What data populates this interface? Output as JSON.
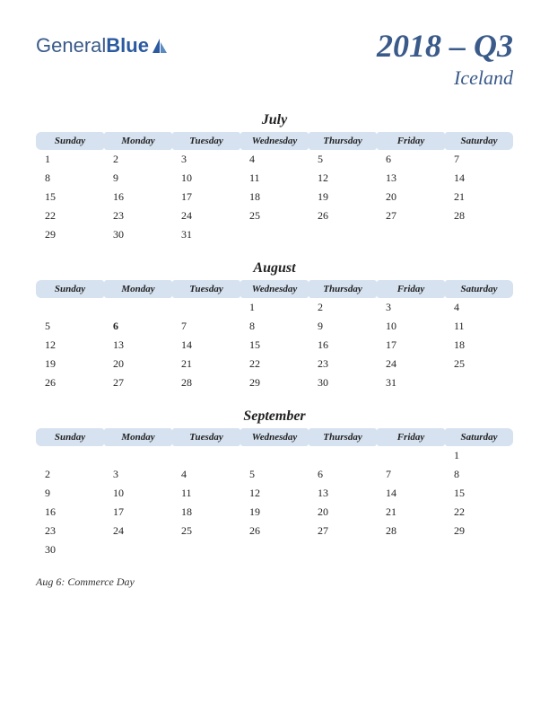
{
  "logo": {
    "text1": "General",
    "text2": "Blue"
  },
  "title": {
    "main": "2018 – Q3",
    "sub": "Iceland"
  },
  "dayHeaders": [
    "Sunday",
    "Monday",
    "Tuesday",
    "Wednesday",
    "Thursday",
    "Friday",
    "Saturday"
  ],
  "months": [
    {
      "name": "July",
      "weeks": [
        [
          "1",
          "2",
          "3",
          "4",
          "5",
          "6",
          "7"
        ],
        [
          "8",
          "9",
          "10",
          "11",
          "12",
          "13",
          "14"
        ],
        [
          "15",
          "16",
          "17",
          "18",
          "19",
          "20",
          "21"
        ],
        [
          "22",
          "23",
          "24",
          "25",
          "26",
          "27",
          "28"
        ],
        [
          "29",
          "30",
          "31",
          "",
          "",
          "",
          ""
        ]
      ],
      "holidays": []
    },
    {
      "name": "August",
      "weeks": [
        [
          "",
          "",
          "",
          "1",
          "2",
          "3",
          "4"
        ],
        [
          "5",
          "6",
          "7",
          "8",
          "9",
          "10",
          "11"
        ],
        [
          "12",
          "13",
          "14",
          "15",
          "16",
          "17",
          "18"
        ],
        [
          "19",
          "20",
          "21",
          "22",
          "23",
          "24",
          "25"
        ],
        [
          "26",
          "27",
          "28",
          "29",
          "30",
          "31",
          ""
        ]
      ],
      "holidays": [
        {
          "week": 1,
          "col": 1
        }
      ]
    },
    {
      "name": "September",
      "weeks": [
        [
          "",
          "",
          "",
          "",
          "",
          "",
          "1"
        ],
        [
          "2",
          "3",
          "4",
          "5",
          "6",
          "7",
          "8"
        ],
        [
          "9",
          "10",
          "11",
          "12",
          "13",
          "14",
          "15"
        ],
        [
          "16",
          "17",
          "18",
          "19",
          "20",
          "21",
          "22"
        ],
        [
          "23",
          "24",
          "25",
          "26",
          "27",
          "28",
          "29"
        ],
        [
          "30",
          "",
          "",
          "",
          "",
          "",
          ""
        ]
      ],
      "holidays": []
    }
  ],
  "footnote": "Aug 6: Commerce Day",
  "colors": {
    "headerBlue": "#3a5a8a",
    "bandBg": "#d6e2f0",
    "holidayRed": "#c02020"
  }
}
